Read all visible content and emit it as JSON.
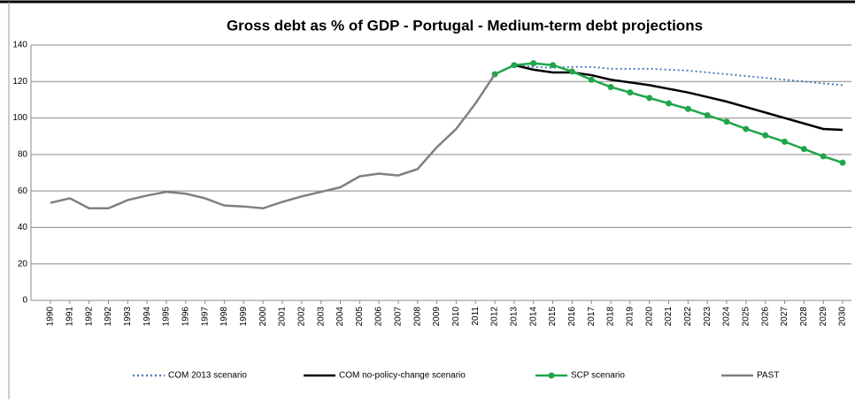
{
  "chart_data": {
    "type": "line",
    "title": "Gross debt as % of GDP - Portugal - Medium-term debt projections",
    "categories": [
      "1990",
      "1991",
      "1992",
      "1992",
      "1993",
      "1994",
      "1995",
      "1996",
      "1997",
      "1998",
      "1999",
      "2000",
      "2001",
      "2002",
      "2003",
      "2004",
      "2005",
      "2006",
      "2007",
      "2008",
      "2009",
      "2010",
      "2011",
      "2012",
      "2013",
      "2014",
      "2015",
      "2016",
      "2017",
      "2018",
      "2019",
      "2020",
      "2021",
      "2022",
      "2023",
      "2024",
      "2025",
      "2026",
      "2027",
      "2028",
      "2029",
      "2030"
    ],
    "ylim": [
      0,
      140
    ],
    "yticks": [
      0,
      20,
      40,
      60,
      80,
      100,
      120,
      140
    ],
    "grid": true,
    "legend": "bottom",
    "series": [
      {
        "name": "COM 2013 scenario",
        "color": "#4a7ebb",
        "dash": "dotted",
        "marker": false,
        "values": [
          null,
          null,
          null,
          null,
          null,
          null,
          null,
          null,
          null,
          null,
          null,
          null,
          null,
          null,
          null,
          null,
          null,
          null,
          null,
          null,
          null,
          null,
          null,
          null,
          129,
          128,
          127.5,
          128,
          128,
          127,
          127,
          127,
          126.5,
          126,
          125,
          124,
          123,
          122,
          121,
          120,
          119,
          118
        ]
      },
      {
        "name": "COM no-policy-change scenario",
        "color": "#000000",
        "dash": "solid",
        "marker": false,
        "values": [
          null,
          null,
          null,
          null,
          null,
          null,
          null,
          null,
          null,
          null,
          null,
          null,
          null,
          null,
          null,
          null,
          null,
          null,
          null,
          null,
          null,
          null,
          null,
          null,
          129,
          126.5,
          125,
          125,
          123.5,
          121,
          119.5,
          118,
          116,
          114,
          111.5,
          109,
          106,
          103,
          100,
          97,
          94,
          93.5
        ]
      },
      {
        "name": "SCP scenario",
        "color": "#1fa64a",
        "dash": "solid",
        "marker": true,
        "values": [
          null,
          null,
          null,
          null,
          null,
          null,
          null,
          null,
          null,
          null,
          null,
          null,
          null,
          null,
          null,
          null,
          null,
          null,
          null,
          null,
          null,
          null,
          null,
          124,
          129,
          130,
          129,
          125.5,
          121,
          117,
          114,
          111,
          108,
          105,
          101.5,
          98,
          94,
          90.5,
          87,
          83,
          79,
          75.5
        ]
      },
      {
        "name": "PAST",
        "color": "#808080",
        "dash": "solid",
        "marker": false,
        "values": [
          53.5,
          56,
          50.5,
          50.5,
          55,
          57.5,
          59.5,
          58.5,
          56,
          52,
          51.5,
          50.5,
          54,
          57,
          59.5,
          62,
          68,
          69.5,
          68.5,
          72,
          84,
          94,
          108,
          124,
          null,
          null,
          null,
          null,
          null,
          null,
          null,
          null,
          null,
          null,
          null,
          null,
          null,
          null,
          null,
          null,
          null,
          null
        ]
      }
    ]
  }
}
